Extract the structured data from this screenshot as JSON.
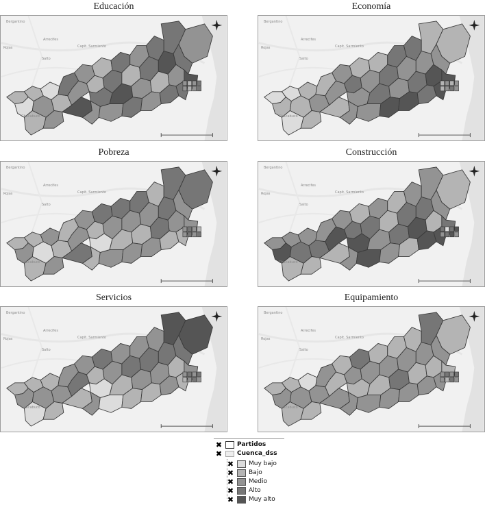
{
  "panels": [
    {
      "title": "Educación",
      "key": "educacion"
    },
    {
      "title": "Economía",
      "key": "economia"
    },
    {
      "title": "Pobreza",
      "key": "pobreza"
    },
    {
      "title": "Construcción",
      "key": "construccion"
    },
    {
      "title": "Servicios",
      "key": "servicios"
    },
    {
      "title": "Equipamiento",
      "key": "equipamiento"
    }
  ],
  "basemap_labels": {
    "region": "Bergantino",
    "place1": "Rojas",
    "place2": "Arrecifes",
    "place3": "Capit. Sarmiento",
    "place4": "Salto",
    "place5": "Chacabuco"
  },
  "legend": {
    "layer1": "Partidos",
    "layer2": "Cuenca_dss",
    "classes": [
      {
        "label": "Muy bajo",
        "color": "#dcdcdc"
      },
      {
        "label": "Bajo",
        "color": "#b4b4b4"
      },
      {
        "label": "Medio",
        "color": "#939393"
      },
      {
        "label": "Alto",
        "color": "#767676"
      },
      {
        "label": "Muy alto",
        "color": "#555555"
      }
    ],
    "check_glyph": "✖"
  }
}
